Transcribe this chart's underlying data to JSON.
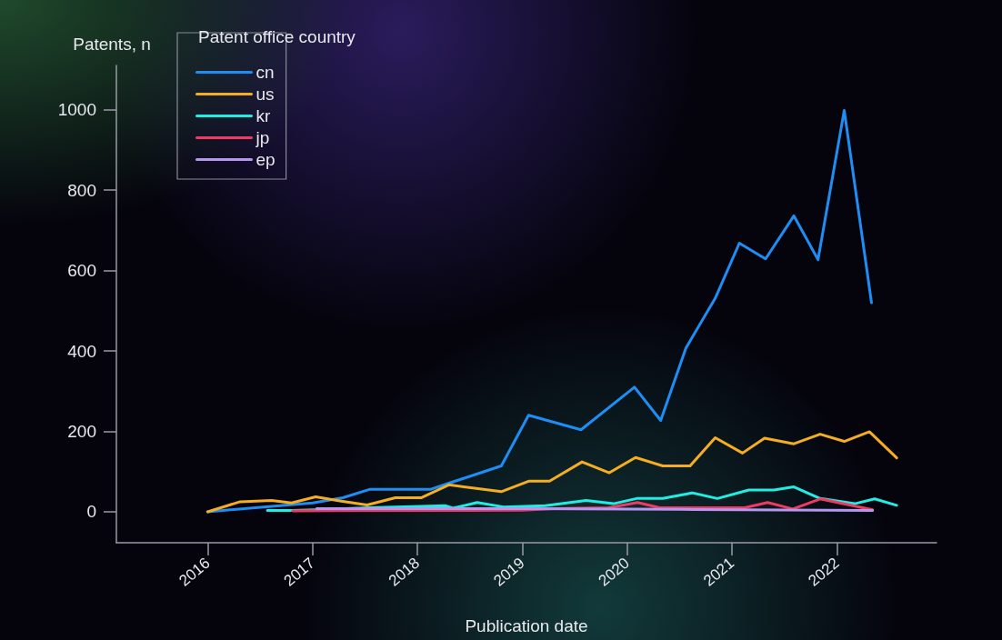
{
  "chart_data": {
    "type": "line",
    "xlabel": "Publication date",
    "ylabel": "Patents, n",
    "legend_title": "Patent office country",
    "legend": "top left",
    "grid": false,
    "marker": "none",
    "line_style": "solid",
    "xlim": [
      2015.13,
      2022.95
    ],
    "xticks": [
      2016,
      2017,
      2018,
      2019,
      2020,
      2021,
      2022
    ],
    "ylim": [
      -77,
      1110
    ],
    "yticks": [
      0,
      200,
      400,
      600,
      800,
      1000
    ],
    "series": [
      {
        "name": "cn",
        "color": "#1e8ef5",
        "x": [
          2016,
          2017,
          2017.29,
          2017.55,
          2018.13,
          2018.3,
          2018.8,
          2019.06,
          2019.56,
          2020.07,
          2020.32,
          2020.56,
          2020.84,
          2021.07,
          2021.32,
          2021.59,
          2021.82,
          2022.07,
          2022.33
        ],
        "values": [
          0,
          22,
          35,
          56,
          56,
          71,
          114,
          240,
          204,
          310,
          227,
          407,
          531,
          668,
          629,
          736,
          627,
          998,
          520
        ]
      },
      {
        "name": "us",
        "color": "#f5ad22",
        "x": [
          2016,
          2016.31,
          2016.61,
          2016.8,
          2017.03,
          2017.26,
          2017.52,
          2017.79,
          2018.04,
          2018.3,
          2018.8,
          2019.06,
          2019.26,
          2019.57,
          2019.83,
          2020.08,
          2020.34,
          2020.6,
          2020.84,
          2021.1,
          2021.31,
          2021.59,
          2021.84,
          2022.07,
          2022.31,
          2022.57
        ],
        "values": [
          0,
          25,
          28,
          22,
          37,
          27,
          17,
          35,
          35,
          67,
          50,
          76,
          76,
          124,
          97,
          135,
          114,
          114,
          184,
          146,
          183,
          169,
          193,
          175,
          199,
          134
        ]
      },
      {
        "name": "kr",
        "color": "#22ede3",
        "x": [
          2016.57,
          2016.8,
          2017.03,
          2017.55,
          2018.27,
          2018.34,
          2018.57,
          2018.82,
          2019.22,
          2019.61,
          2019.87,
          2020.09,
          2020.34,
          2020.62,
          2020.86,
          2021.16,
          2021.4,
          2021.59,
          2021.84,
          2022.17,
          2022.36,
          2022.57
        ],
        "values": [
          3,
          3,
          5,
          10,
          15,
          9,
          23,
          12,
          15,
          28,
          20,
          33,
          33,
          47,
          33,
          54,
          54,
          62,
          33,
          20,
          32,
          16
        ]
      },
      {
        "name": "jp",
        "color": "#f03a63",
        "x": [
          2016.81,
          2017.5,
          2018.5,
          2019,
          2019.3,
          2019.82,
          2020.1,
          2020.31,
          2021.12,
          2021.34,
          2021.58,
          2021.84,
          2022.34
        ],
        "values": [
          2,
          3,
          3,
          4,
          8,
          10,
          23,
          10,
          10,
          23,
          7,
          32,
          5
        ]
      },
      {
        "name": "ep",
        "color": "#b597f0",
        "x": [
          2017.04,
          2019,
          2020.5,
          2022.34
        ],
        "values": [
          8,
          8,
          6,
          3
        ]
      }
    ]
  }
}
